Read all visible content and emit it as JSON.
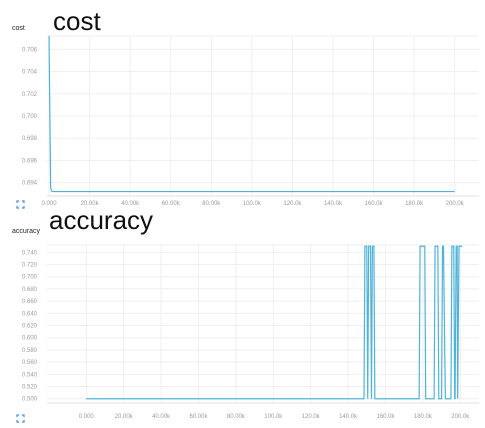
{
  "chart_data": [
    {
      "type": "line",
      "title": "cost",
      "name": "cost",
      "x_ticks": [
        "0.000",
        "20.00k",
        "40.00k",
        "60.00k",
        "80.00k",
        "100.0k",
        "120.0k",
        "140.0k",
        "160.0k",
        "180.0k",
        "200.0k"
      ],
      "y_ticks": [
        "0.706",
        "0.704",
        "0.702",
        "0.700",
        "0.698",
        "0.696",
        "0.694"
      ],
      "xlim": [
        -1000,
        212000
      ],
      "ylim": [
        0.6928,
        0.7072
      ],
      "series": [
        {
          "color": "#4fb3d9",
          "x": [
            0,
            800,
            1500,
            200000
          ],
          "y": [
            0.7072,
            0.6935,
            0.6932,
            0.6932
          ]
        }
      ]
    },
    {
      "type": "line",
      "title": "accuracy",
      "name": "accuracy",
      "x_ticks": [
        "0.000",
        "20.00k",
        "40.00k",
        "60.00k",
        "80.00k",
        "100.0k",
        "120.0k",
        "140.0k",
        "160.0k",
        "180.0k",
        "200.0k"
      ],
      "y_ticks": [
        "0.740",
        "0.720",
        "0.700",
        "0.680",
        "0.660",
        "0.640",
        "0.620",
        "0.600",
        "0.580",
        "0.560",
        "0.540",
        "0.520",
        "0.500"
      ],
      "xlim": [
        -21000,
        210000
      ],
      "ylim": [
        0.493,
        0.752
      ],
      "series": [
        {
          "color": "#4fb3d9",
          "x": [
            0,
            148500,
            149000,
            150000,
            150500,
            151000,
            152000,
            152500,
            153000,
            153800,
            154300,
            155000,
            178000,
            178500,
            181000,
            181500,
            186000,
            186500,
            188000,
            188500,
            190000,
            190500,
            191000,
            192000,
            195000,
            195500,
            196500,
            197000,
            197200,
            197800,
            198300,
            198600,
            199300,
            199800,
            201000
          ],
          "y": [
            0.5,
            0.5,
            0.75,
            0.75,
            0.5,
            0.75,
            0.75,
            0.5,
            0.75,
            0.75,
            0.5,
            0.5,
            0.5,
            0.75,
            0.75,
            0.5,
            0.5,
            0.75,
            0.75,
            0.5,
            0.5,
            0.75,
            0.75,
            0.5,
            0.5,
            0.75,
            0.75,
            0.5,
            0.5,
            0.75,
            0.75,
            0.5,
            0.75,
            0.75,
            0.75
          ]
        }
      ]
    }
  ]
}
